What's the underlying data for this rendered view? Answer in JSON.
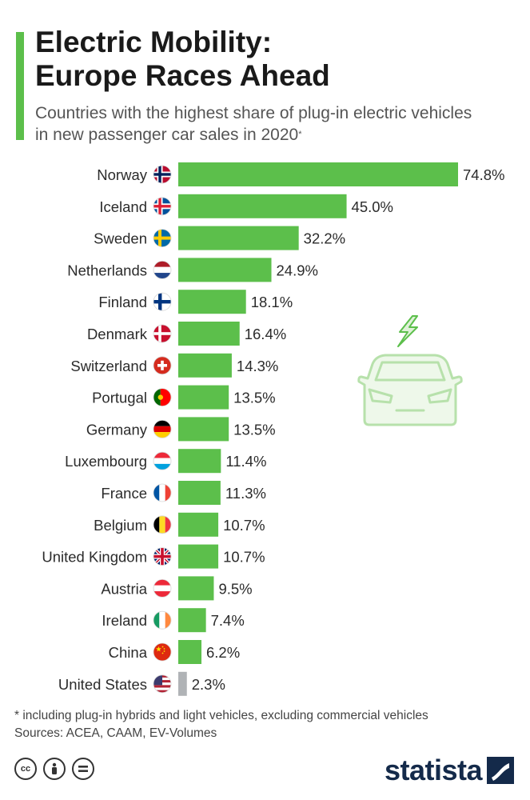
{
  "header": {
    "title_line1": "Electric Mobility:",
    "title_line2": "Europe Races Ahead",
    "subtitle_line1": "Countries with the highest share of plug-in electric vehicles",
    "subtitle_line2": "in new passenger car sales in 2020",
    "subtitle_marker": "*"
  },
  "chart_data": {
    "type": "bar",
    "orientation": "horizontal",
    "title": "Electric Mobility: Europe Races Ahead",
    "subtitle": "Countries with the highest share of plug-in electric vehicles in new passenger car sales in 2020*",
    "categories": [
      "Norway",
      "Iceland",
      "Sweden",
      "Netherlands",
      "Finland",
      "Denmark",
      "Switzerland",
      "Portugal",
      "Germany",
      "Luxembourg",
      "France",
      "Belgium",
      "United Kingdom",
      "Austria",
      "Ireland",
      "China",
      "United States"
    ],
    "values": [
      74.8,
      45.0,
      32.2,
      24.9,
      18.1,
      16.4,
      14.3,
      13.5,
      13.5,
      11.4,
      11.3,
      10.7,
      10.7,
      9.5,
      7.4,
      6.2,
      2.3
    ],
    "value_labels": [
      "74.8%",
      "45.0%",
      "32.2%",
      "24.9%",
      "18.1%",
      "16.4%",
      "14.3%",
      "13.5%",
      "13.5%",
      "11.4%",
      "11.3%",
      "10.7%",
      "10.7%",
      "9.5%",
      "7.4%",
      "6.2%",
      "2.3%"
    ],
    "flag_icons": [
      "norway-flag-icon",
      "iceland-flag-icon",
      "sweden-flag-icon",
      "netherlands-flag-icon",
      "finland-flag-icon",
      "denmark-flag-icon",
      "switzerland-flag-icon",
      "portugal-flag-icon",
      "germany-flag-icon",
      "luxembourg-flag-icon",
      "france-flag-icon",
      "belgium-flag-icon",
      "united-kingdom-flag-icon",
      "austria-flag-icon",
      "ireland-flag-icon",
      "china-flag-icon",
      "united-states-flag-icon"
    ],
    "bar_colors": [
      "#5cbf4b",
      "#5cbf4b",
      "#5cbf4b",
      "#5cbf4b",
      "#5cbf4b",
      "#5cbf4b",
      "#5cbf4b",
      "#5cbf4b",
      "#5cbf4b",
      "#5cbf4b",
      "#5cbf4b",
      "#5cbf4b",
      "#5cbf4b",
      "#5cbf4b",
      "#5cbf4b",
      "#5cbf4b",
      "#b0b3b6"
    ],
    "xlim": [
      0,
      74.8
    ],
    "grid": false,
    "legend": "none"
  },
  "footnote": {
    "note": "* including plug-in hybrids and light vehicles, excluding commercial vehicles",
    "sources": "Sources: ACEA, CAAM, EV-Volumes"
  },
  "branding": {
    "logo_text": "statista",
    "license_icons": [
      "creative-commons-icon",
      "attribution-icon",
      "no-derivatives-icon"
    ]
  },
  "colors": {
    "accent": "#5cbf4b",
    "highlight_bar": "#b0b3b6",
    "brand": "#142a4a"
  },
  "icons": {
    "illustration": "electric-car-icon"
  }
}
